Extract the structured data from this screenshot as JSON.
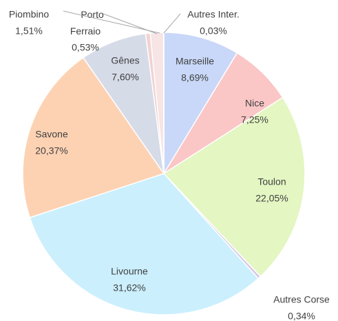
{
  "chart_data": {
    "type": "pie",
    "categories": [
      "Marseille",
      "Nice",
      "Toulon",
      "Autres Corse",
      "Livourne",
      "Savone",
      "Gênes",
      "Porto Ferraio",
      "Piombino",
      "Autres Inter."
    ],
    "values": [
      8.69,
      7.25,
      22.05,
      0.34,
      31.62,
      20.37,
      7.6,
      0.53,
      1.51,
      0.03
    ],
    "value_labels": [
      "8,69%",
      "7,25%",
      "22,05%",
      "0,34%",
      "31,62%",
      "20,37%",
      "7,60%",
      "0,53%",
      "1,51%",
      "0,03%"
    ],
    "colors": [
      "#c9d8f8",
      "#fac6c6",
      "#e4f6c2",
      "#d6c8e8",
      "#cbeffd",
      "#fdd2b3",
      "#d6dbe8",
      "#f2d2d2",
      "#f7e4e4",
      "#e8f2c8"
    ]
  }
}
